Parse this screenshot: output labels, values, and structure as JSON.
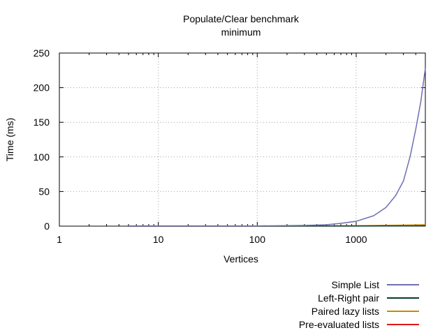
{
  "chart_data": {
    "type": "line",
    "title": "Populate/Clear benchmark",
    "subtitle": "minimum",
    "xlabel": "Vertices",
    "ylabel": "Time (ms)",
    "xscale": "log",
    "xlim": [
      1,
      5000
    ],
    "ylim": [
      0,
      250
    ],
    "xticks": [
      1,
      10,
      100,
      1000
    ],
    "xtick_labels": [
      "1",
      "10",
      "100",
      "1000"
    ],
    "yticks": [
      0,
      50,
      100,
      150,
      200,
      250
    ],
    "ytick_labels": [
      "0",
      "50",
      "100",
      "150",
      "200",
      "250"
    ],
    "grid": true,
    "legend_position": "bottom-right",
    "series": [
      {
        "name": "Simple List",
        "color": "#6e6eb4",
        "x": [
          5,
          100,
          300,
          500,
          700,
          1000,
          1500,
          2000,
          2500,
          3000,
          3500,
          4000,
          4500,
          5000
        ],
        "y": [
          0,
          0.3,
          1,
          2,
          4,
          7,
          15,
          27,
          44,
          65,
          100,
          140,
          180,
          228
        ]
      },
      {
        "name": "Left-Right pair",
        "color": "#0a3a2a",
        "x": [
          5,
          100,
          1000,
          2000,
          3000,
          4000,
          5000
        ],
        "y": [
          0,
          0,
          0.1,
          0.2,
          0.3,
          0.4,
          0.5
        ]
      },
      {
        "name": "Paired lazy lists",
        "color": "#c88c00",
        "x": [
          5,
          100,
          1000,
          2000,
          3000,
          4000,
          5000
        ],
        "y": [
          0,
          0.1,
          0.5,
          1.2,
          1.5,
          1.8,
          2.0
        ]
      },
      {
        "name": "Pre-evaluated lists",
        "color": "#e01818",
        "x": [
          5,
          100,
          1000,
          2000,
          3000,
          4000,
          5000
        ],
        "y": [
          0,
          0.1,
          0.4,
          0.9,
          1.2,
          1.4,
          1.6
        ]
      }
    ]
  }
}
